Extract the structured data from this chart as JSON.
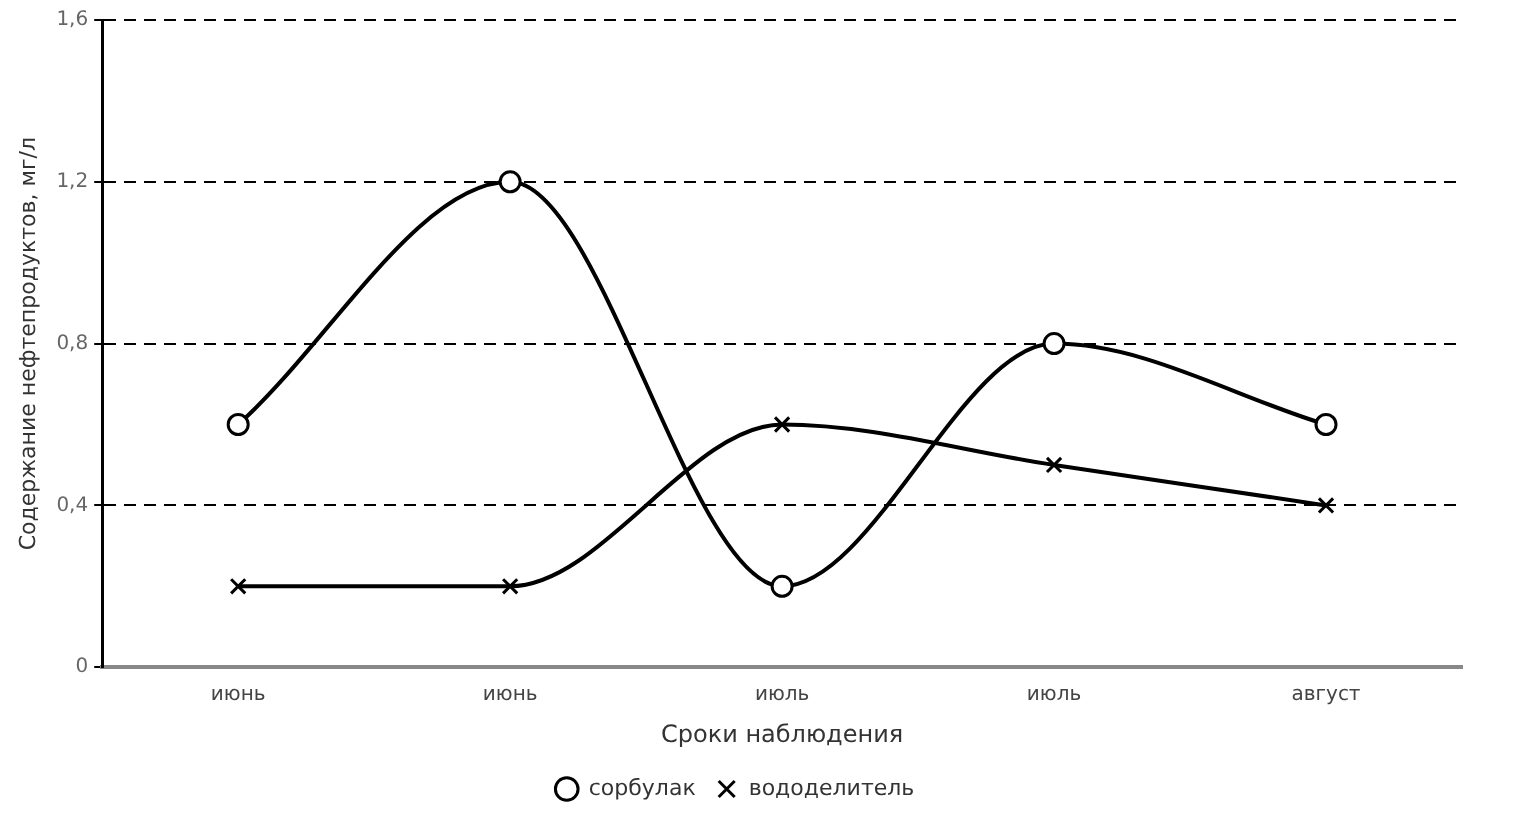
{
  "chart_data": {
    "type": "line",
    "xlabel": "Сроки наблюдения",
    "ylabel": "Содержание нефтепродуктов, мг/л",
    "categories": [
      "июнь",
      "июнь",
      "июль",
      "июль",
      "август"
    ],
    "series": [
      {
        "name": "сорбулак",
        "color": "#000000",
        "marker": "circle",
        "values": [
          0.6,
          1.2,
          0.2,
          0.8,
          0.6
        ]
      },
      {
        "name": "вододелитель",
        "color": "#000000",
        "marker": "cross",
        "values": [
          0.2,
          0.2,
          0.6,
          0.5,
          0.4
        ]
      }
    ],
    "ylim": [
      0,
      1.6
    ],
    "yticks": [
      {
        "value": 0,
        "label": "0"
      },
      {
        "value": 0.4,
        "label": "0,4"
      },
      {
        "value": 0.8,
        "label": "0,8"
      },
      {
        "value": 1.2,
        "label": "1,2"
      },
      {
        "value": 1.6,
        "label": "1,6"
      }
    ],
    "grid": "y",
    "legend": "bottom"
  }
}
